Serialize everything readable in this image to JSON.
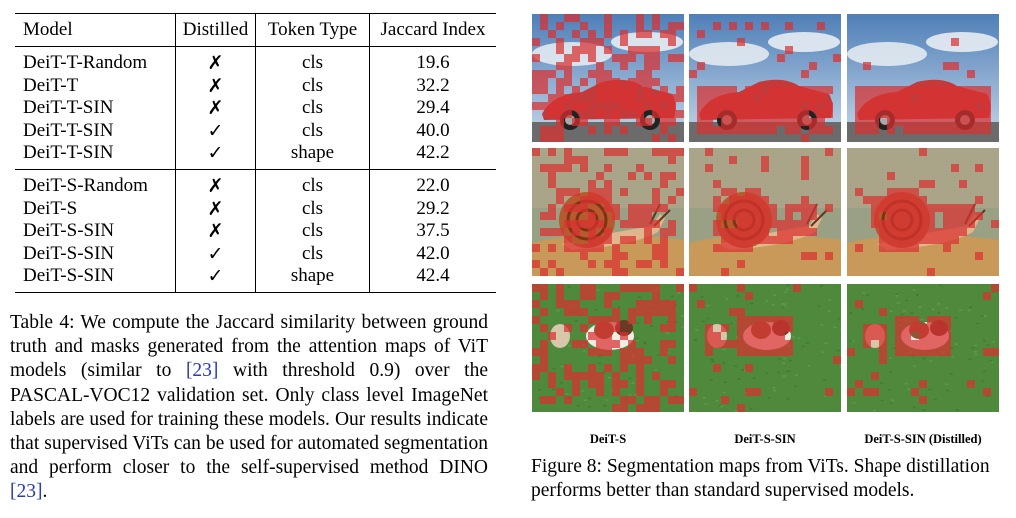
{
  "table": {
    "headers": [
      "Model",
      "Distilled",
      "Token Type",
      "Jaccard Index"
    ],
    "group_a": [
      {
        "model": "DeiT-T-Random",
        "distilled": "✗",
        "token": "cls",
        "jaccard": "19.6"
      },
      {
        "model": "DeiT-T",
        "distilled": "✗",
        "token": "cls",
        "jaccard": "32.2"
      },
      {
        "model": "DeiT-T-SIN",
        "distilled": "✗",
        "token": "cls",
        "jaccard": "29.4"
      },
      {
        "model": "DeiT-T-SIN",
        "distilled": "✓",
        "token": "cls",
        "jaccard": "40.0"
      },
      {
        "model": "DeiT-T-SIN",
        "distilled": "✓",
        "token": "shape",
        "jaccard": "42.2"
      }
    ],
    "group_b": [
      {
        "model": "DeiT-S-Random",
        "distilled": "✗",
        "token": "cls",
        "jaccard": "22.0"
      },
      {
        "model": "DeiT-S",
        "distilled": "✗",
        "token": "cls",
        "jaccard": "29.2"
      },
      {
        "model": "DeiT-S-SIN",
        "distilled": "✗",
        "token": "cls",
        "jaccard": "37.5"
      },
      {
        "model": "DeiT-S-SIN",
        "distilled": "✓",
        "token": "cls",
        "jaccard": "42.0"
      },
      {
        "model": "DeiT-S-SIN",
        "distilled": "✓",
        "token": "shape",
        "jaccard": "42.4"
      }
    ]
  },
  "caption_left": {
    "part1": "Table 4: We compute the Jaccard similarity between ground truth and masks generated from the attention maps of ViT models (similar to ",
    "cite1": "[23]",
    "part2": " with threshold 0.9) over the PASCAL-VOC12 validation set. Only class level ImageNet labels are used for training these models. Our results indicate that supervised ViTs can be used for automated segmentation and perform closer to the self-supervised method DINO ",
    "cite2": "[23]",
    "part3": "."
  },
  "figure": {
    "columns": [
      "DeiT-S",
      "DeiT-S-SIN",
      "DeiT-S-SIN (Distilled)"
    ],
    "rows": [
      "car",
      "snail",
      "dogs"
    ],
    "overlay_color": "#d93030",
    "caption": "Figure 8: Segmentation maps from ViTs. Shape distillation performs better than standard supervised models."
  }
}
